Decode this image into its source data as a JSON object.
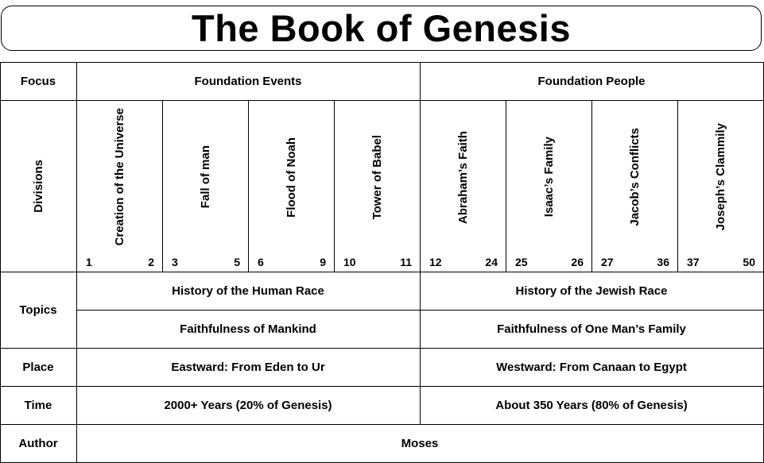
{
  "title": "The Book of Genesis",
  "rows": {
    "focus": {
      "label": "Focus",
      "left": "Foundation Events",
      "right": "Foundation People"
    },
    "divisions": {
      "label": "Divisions",
      "items": [
        {
          "name": "Creation of the Universe",
          "start": "1",
          "end": "2"
        },
        {
          "name": "Fall of man",
          "start": "3",
          "end": "5"
        },
        {
          "name": "Flood of Noah",
          "start": "6",
          "end": "9"
        },
        {
          "name": "Tower of Babel",
          "start": "10",
          "end": "11"
        },
        {
          "name": "Abraham’s Faith",
          "start": "12",
          "end": "24"
        },
        {
          "name": "Isaac’s Family",
          "start": "25",
          "end": "26"
        },
        {
          "name": "Jacob’s Conflicts",
          "start": "27",
          "end": "36"
        },
        {
          "name": "Joseph’s Clammily",
          "start": "37",
          "end": "50"
        }
      ]
    },
    "topics": {
      "label": "Topics",
      "left_1": "History of the Human Race",
      "right_1": "History of the Jewish Race",
      "left_2": "Faithfulness of Mankind",
      "right_2": "Faithfulness of One Man’s Family"
    },
    "place": {
      "label": "Place",
      "left": "Eastward: From Eden to Ur",
      "right": "Westward: From Canaan to Egypt"
    },
    "time": {
      "label": "Time",
      "left": "2000+ Years (20% of Genesis)",
      "right": "About 350 Years (80% of Genesis)"
    },
    "author": {
      "label": "Author",
      "value": "Moses"
    }
  }
}
